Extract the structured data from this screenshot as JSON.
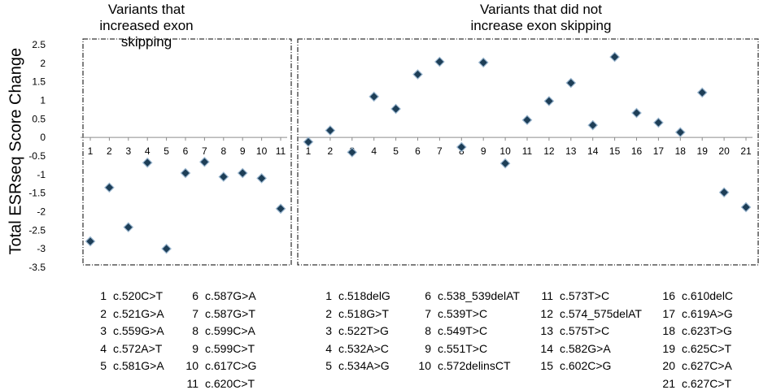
{
  "y_axis_label": "Total ESRseq Score Change",
  "chart_data": [
    {
      "type": "scatter",
      "title": "Variants that increased exon skipping",
      "x": [
        1,
        2,
        3,
        4,
        5,
        6,
        7,
        8,
        9,
        10,
        11
      ],
      "y": [
        -2.8,
        -1.35,
        -2.42,
        -0.68,
        -3.0,
        -0.96,
        -0.66,
        -1.06,
        -0.96,
        -1.1,
        -1.92
      ],
      "ylim": [
        -3.5,
        2.5
      ],
      "yticks": [
        "2.5",
        "2",
        "1.5",
        "1",
        "0.5",
        "0",
        "-0.5",
        "-1",
        "-1.5",
        "-2",
        "-2.5",
        "-3",
        "-3.5"
      ],
      "grid": false,
      "legend": [
        {
          "n": "1",
          "label": "c.520C>T"
        },
        {
          "n": "2",
          "label": "c.521G>A"
        },
        {
          "n": "3",
          "label": "c.559G>A"
        },
        {
          "n": "4",
          "label": "c.572A>T"
        },
        {
          "n": "5",
          "label": "c.581G>A"
        },
        {
          "n": "6",
          "label": "c.587G>A"
        },
        {
          "n": "7",
          "label": "c.587G>T"
        },
        {
          "n": "8",
          "label": "c.599C>A"
        },
        {
          "n": "9",
          "label": "c.599C>T"
        },
        {
          "n": "10",
          "label": "c.617C>G"
        },
        {
          "n": "11",
          "label": "c.620C>T"
        }
      ]
    },
    {
      "type": "scatter",
      "title": "Variants that did not increase exon skipping",
      "x": [
        1,
        2,
        3,
        4,
        5,
        6,
        7,
        8,
        9,
        10,
        11,
        12,
        13,
        14,
        15,
        16,
        17,
        18,
        19,
        20,
        21
      ],
      "y": [
        -0.12,
        0.19,
        -0.4,
        1.1,
        0.77,
        1.7,
        2.04,
        -0.26,
        2.02,
        -0.7,
        0.47,
        0.98,
        1.47,
        0.33,
        2.17,
        0.66,
        0.4,
        0.14,
        1.21,
        -1.48,
        -1.88
      ],
      "ylim": [
        -3.5,
        2.5
      ],
      "grid": false,
      "legend": [
        {
          "n": "1",
          "label": "c.518delG"
        },
        {
          "n": "2",
          "label": "c.518G>T"
        },
        {
          "n": "3",
          "label": "c.522T>G"
        },
        {
          "n": "4",
          "label": "c.532A>C"
        },
        {
          "n": "5",
          "label": "c.534A>G"
        },
        {
          "n": "6",
          "label": "c.538_539delAT"
        },
        {
          "n": "7",
          "label": "c.539T>C"
        },
        {
          "n": "8",
          "label": "c.549T>C"
        },
        {
          "n": "9",
          "label": "c.551T>C"
        },
        {
          "n": "10",
          "label": "c.572delinsCT"
        },
        {
          "n": "11",
          "label": "c.573T>C"
        },
        {
          "n": "12",
          "label": "c.574_575delAT"
        },
        {
          "n": "13",
          "label": "c.575T>C"
        },
        {
          "n": "14",
          "label": "c.582G>A"
        },
        {
          "n": "15",
          "label": "c.602C>G"
        },
        {
          "n": "16",
          "label": "c.610delC"
        },
        {
          "n": "17",
          "label": "c.619A>G"
        },
        {
          "n": "18",
          "label": "c.623T>G"
        },
        {
          "n": "19",
          "label": "c.625C>T"
        },
        {
          "n": "20",
          "label": "c.627C>A"
        },
        {
          "n": "21",
          "label": "c.627C>T"
        }
      ]
    }
  ]
}
